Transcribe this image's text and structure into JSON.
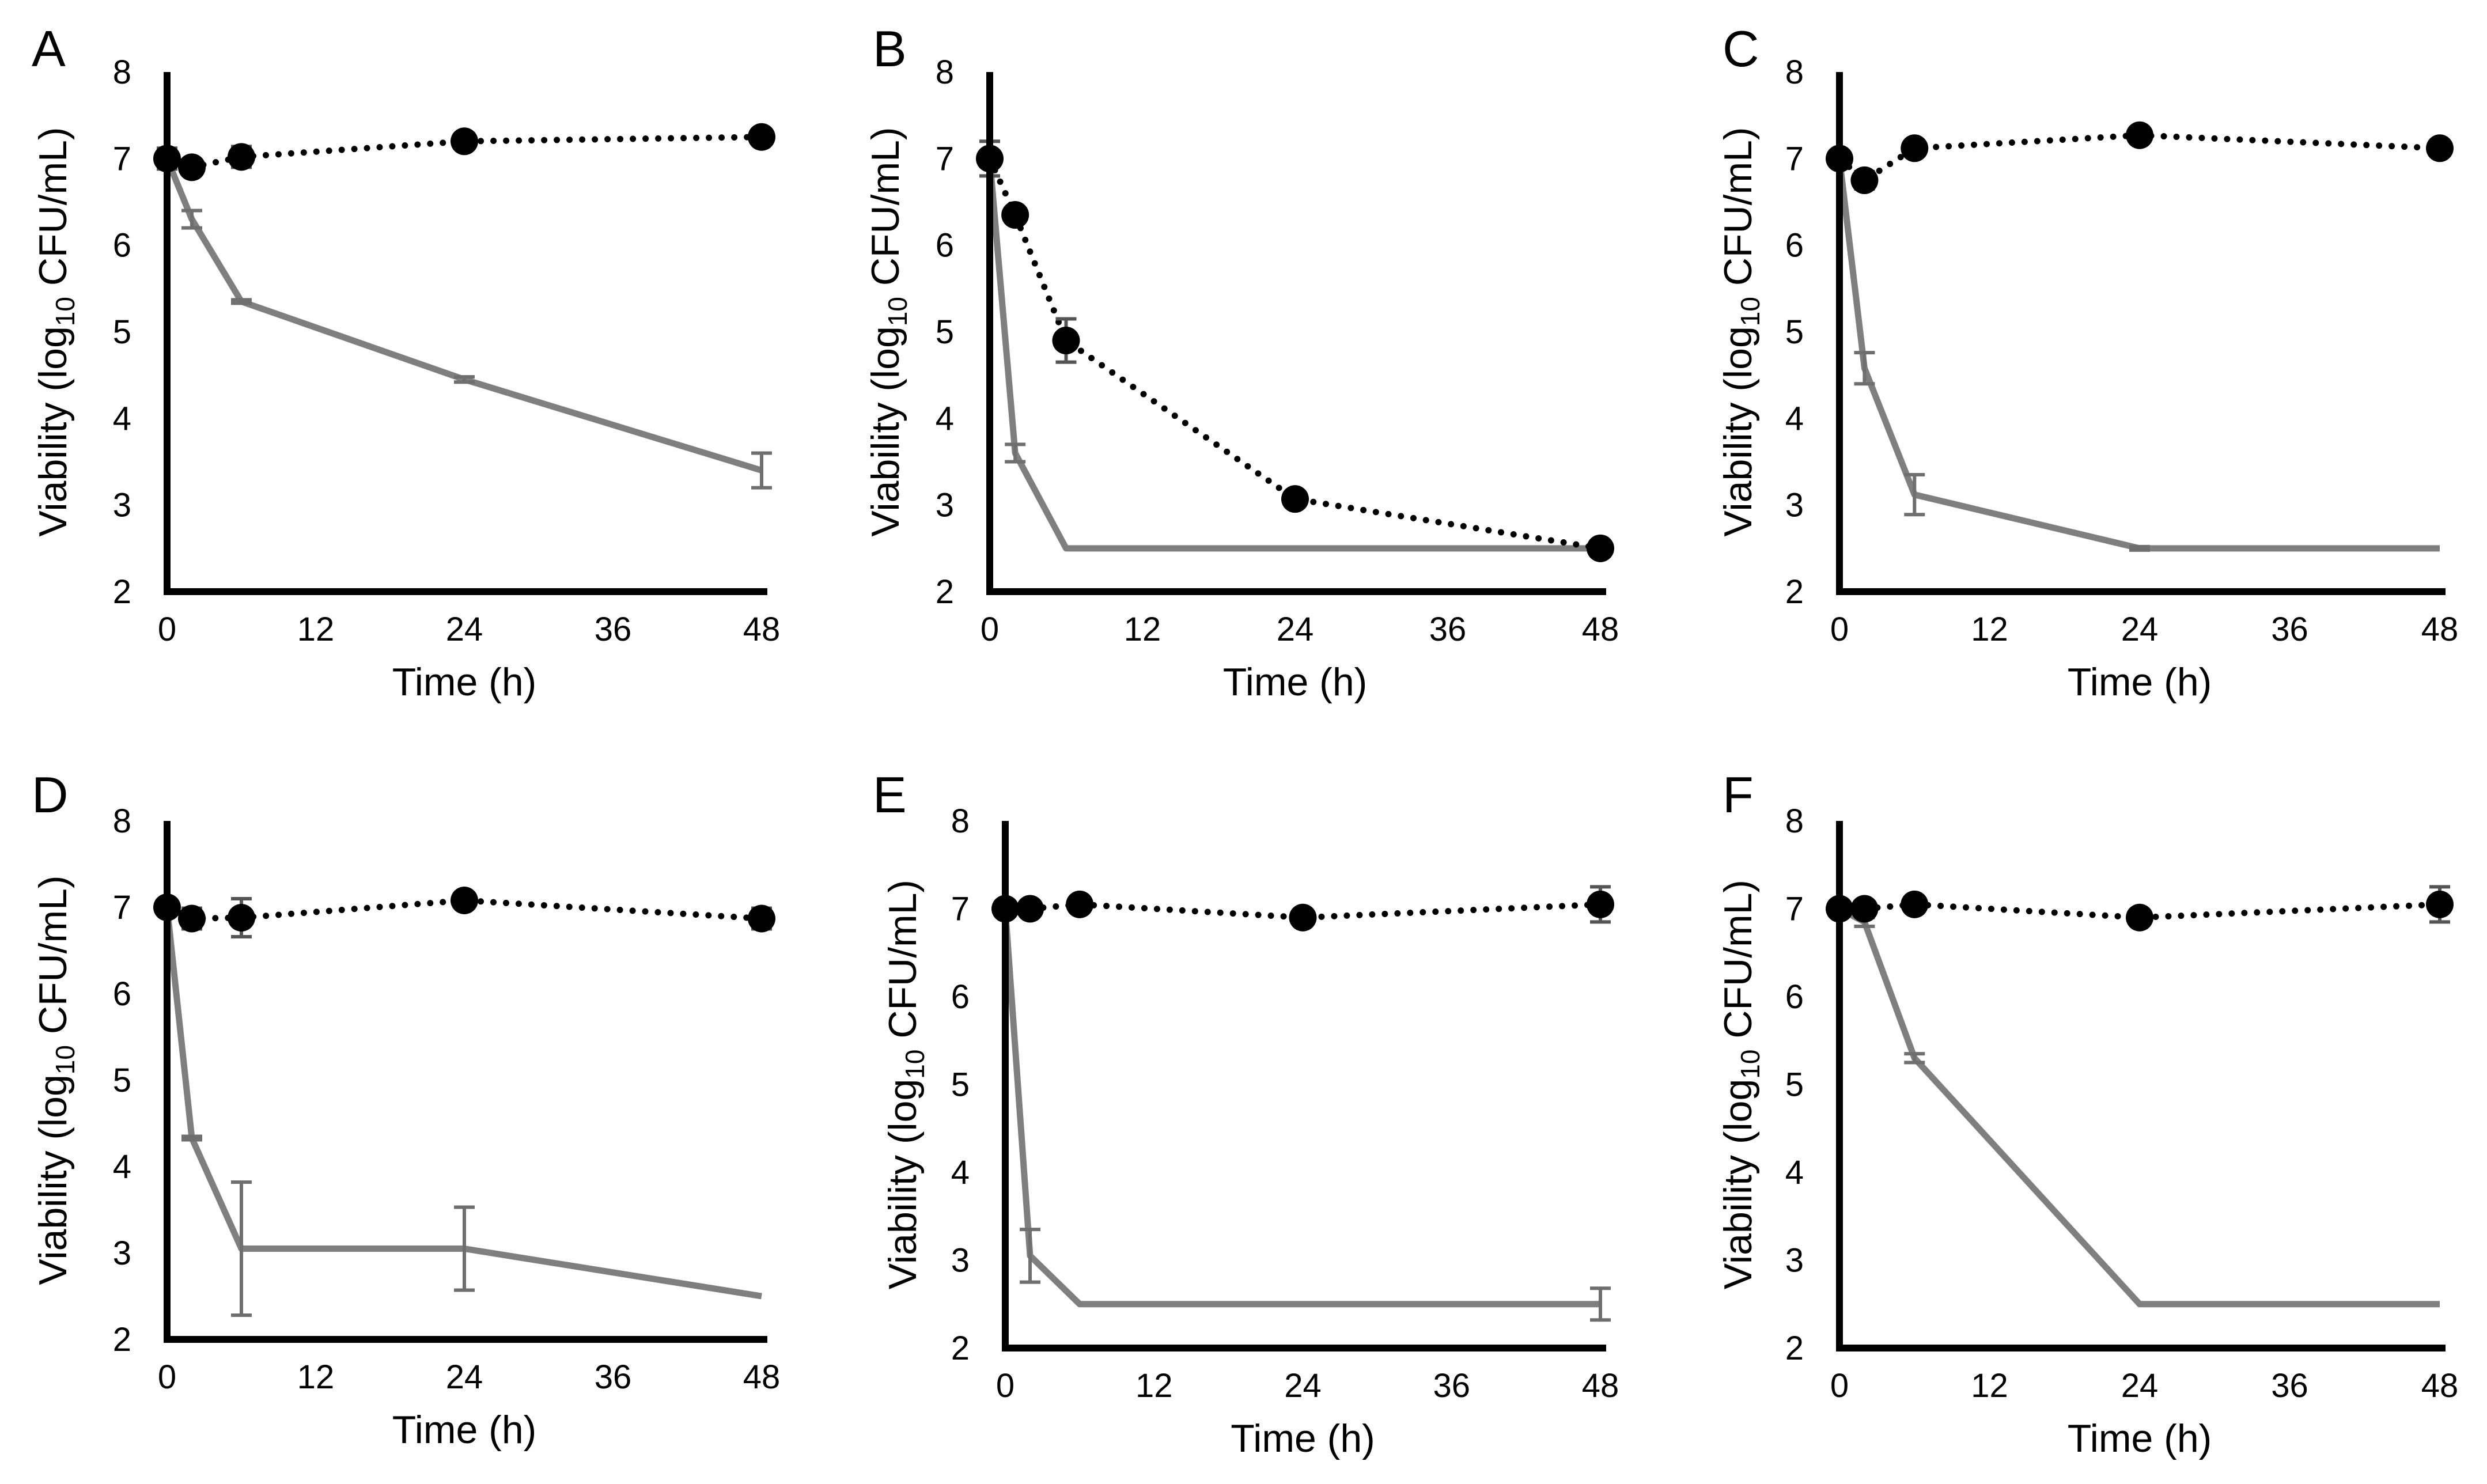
{
  "chart_data": [
    {
      "type": "line",
      "panel": "A",
      "xlabel": "Time (h)",
      "ylabel_prefix": "Viability (log",
      "ylabel_sub": "10",
      "ylabel_suffix": " CFU/mL)",
      "xlim": [
        0,
        48
      ],
      "ylim": [
        2,
        8
      ],
      "xticks": [
        "0",
        "12",
        "24",
        "36",
        "48"
      ],
      "yticks": [
        "2",
        "3",
        "4",
        "5",
        "6",
        "7",
        "8"
      ],
      "series": [
        {
          "name": "dotted-circle",
          "style": "dotted",
          "color": "#000000",
          "marker": "circle",
          "x": [
            0,
            2,
            6,
            24,
            48
          ],
          "y": [
            7.0,
            6.9,
            7.02,
            7.2,
            7.25
          ],
          "err": [
            0.12,
            0.05,
            0.12,
            0.05,
            0.04
          ]
        },
        {
          "name": "solid-gray",
          "style": "solid",
          "color": "#7f7f7f",
          "marker": "none",
          "x": [
            0,
            2,
            6,
            24,
            48
          ],
          "y": [
            7.0,
            6.3,
            5.35,
            4.45,
            3.4
          ],
          "err": [
            0.0,
            0.1,
            0.02,
            0.03,
            0.2
          ]
        }
      ]
    },
    {
      "type": "line",
      "panel": "B",
      "xlabel": "Time (h)",
      "ylabel_prefix": "Viability (log",
      "ylabel_sub": "10",
      "ylabel_suffix": " CFU/mL)",
      "xlim": [
        0,
        48
      ],
      "ylim": [
        2,
        8
      ],
      "xticks": [
        "0",
        "12",
        "24",
        "36",
        "48"
      ],
      "yticks": [
        "2",
        "3",
        "4",
        "5",
        "6",
        "7",
        "8"
      ],
      "series": [
        {
          "name": "dotted-circle",
          "style": "dotted",
          "color": "#000000",
          "marker": "circle",
          "x": [
            0,
            2,
            6,
            24,
            48
          ],
          "y": [
            7.0,
            6.35,
            4.9,
            3.07,
            2.5
          ],
          "err": [
            0.2,
            0.05,
            0.25,
            0.05,
            0.0
          ]
        },
        {
          "name": "solid-gray",
          "style": "solid",
          "color": "#7f7f7f",
          "marker": "none",
          "x": [
            0,
            2,
            6,
            24,
            48
          ],
          "y": [
            7.0,
            3.6,
            2.5,
            2.5,
            2.5
          ],
          "err": [
            0.0,
            0.1,
            0.0,
            0.0,
            0.0
          ]
        }
      ]
    },
    {
      "type": "line",
      "panel": "C",
      "xlabel": "Time (h)",
      "ylabel_prefix": "Viability (log",
      "ylabel_sub": "10",
      "ylabel_suffix": " CFU/mL)",
      "xlim": [
        0,
        48
      ],
      "ylim": [
        2,
        8
      ],
      "xticks": [
        "0",
        "12",
        "24",
        "36",
        "48"
      ],
      "yticks": [
        "2",
        "3",
        "4",
        "5",
        "6",
        "7",
        "8"
      ],
      "series": [
        {
          "name": "dotted-circle",
          "style": "dotted",
          "color": "#000000",
          "marker": "circle",
          "x": [
            0,
            2,
            6,
            24,
            48
          ],
          "y": [
            7.0,
            6.75,
            7.12,
            7.27,
            7.12
          ],
          "err": [
            0.05,
            0.1,
            0.05,
            0.05,
            0.03
          ]
        },
        {
          "name": "solid-gray",
          "style": "solid",
          "color": "#7f7f7f",
          "marker": "none",
          "x": [
            0,
            2,
            6,
            24,
            48
          ],
          "y": [
            7.0,
            4.58,
            3.12,
            2.5,
            2.5
          ],
          "err": [
            0.0,
            0.18,
            0.23,
            0.02,
            0.0
          ]
        }
      ]
    },
    {
      "type": "line",
      "panel": "D",
      "xlabel": "Time (h)",
      "ylabel_prefix": "Viability (log",
      "ylabel_sub": "10",
      "ylabel_suffix": " CFU/mL)",
      "xlim": [
        0,
        48
      ],
      "ylim": [
        2,
        8
      ],
      "xticks": [
        "0",
        "12",
        "24",
        "36",
        "48"
      ],
      "yticks": [
        "2",
        "3",
        "4",
        "5",
        "6",
        "7",
        "8"
      ],
      "series": [
        {
          "name": "dotted-circle",
          "style": "dotted",
          "color": "#000000",
          "marker": "circle",
          "x": [
            0,
            2,
            6,
            24,
            48
          ],
          "y": [
            7.0,
            6.87,
            6.88,
            7.08,
            6.87
          ],
          "err": [
            0.05,
            0.12,
            0.22,
            0.05,
            0.12
          ]
        },
        {
          "name": "solid-gray",
          "style": "solid",
          "color": "#7f7f7f",
          "marker": "none",
          "x": [
            0,
            2,
            6,
            24,
            48
          ],
          "y": [
            7.0,
            4.33,
            3.05,
            3.05,
            2.5
          ],
          "err": [
            0.0,
            0.02,
            0.77,
            0.48,
            0.0
          ]
        }
      ]
    },
    {
      "type": "line",
      "panel": "E",
      "xlabel": "Time (h)",
      "ylabel_prefix": "Viability (log",
      "ylabel_sub": "10",
      "ylabel_suffix": " CFU/mL)",
      "xlim": [
        0,
        48
      ],
      "ylim": [
        2,
        8
      ],
      "xticks": [
        "0",
        "12",
        "24",
        "36",
        "48"
      ],
      "yticks": [
        "2",
        "3",
        "4",
        "5",
        "6",
        "7",
        "8"
      ],
      "series": [
        {
          "name": "dotted-circle",
          "style": "dotted",
          "color": "#000000",
          "marker": "circle",
          "x": [
            0,
            2,
            6,
            24,
            48
          ],
          "y": [
            7.0,
            7.0,
            7.05,
            6.9,
            7.05
          ],
          "err": [
            0.05,
            0.02,
            0.05,
            0.05,
            0.2
          ]
        },
        {
          "name": "solid-gray",
          "style": "solid",
          "color": "#7f7f7f",
          "marker": "none",
          "x": [
            0,
            2,
            6,
            24,
            48
          ],
          "y": [
            7.0,
            3.05,
            2.5,
            2.5,
            2.5
          ],
          "err": [
            0.0,
            0.3,
            0.0,
            0.0,
            0.18
          ]
        }
      ]
    },
    {
      "type": "line",
      "panel": "F",
      "xlabel": "Time (h)",
      "ylabel_prefix": "Viability (log",
      "ylabel_sub": "10",
      "ylabel_suffix": " CFU/mL)",
      "xlim": [
        0,
        48
      ],
      "ylim": [
        2,
        8
      ],
      "xticks": [
        "0",
        "12",
        "24",
        "36",
        "48"
      ],
      "yticks": [
        "2",
        "3",
        "4",
        "5",
        "6",
        "7",
        "8"
      ],
      "series": [
        {
          "name": "dotted-circle",
          "style": "dotted",
          "color": "#000000",
          "marker": "circle",
          "x": [
            0,
            2,
            6,
            24,
            48
          ],
          "y": [
            7.0,
            7.0,
            7.05,
            6.9,
            7.05
          ],
          "err": [
            0.05,
            0.02,
            0.05,
            0.05,
            0.2
          ]
        },
        {
          "name": "solid-gray",
          "style": "solid",
          "color": "#7f7f7f",
          "marker": "none",
          "x": [
            0,
            2,
            6,
            24,
            48
          ],
          "y": [
            7.0,
            6.85,
            5.3,
            2.5,
            2.5
          ],
          "err": [
            0.0,
            0.05,
            0.05,
            0.0,
            0.0
          ]
        }
      ]
    }
  ]
}
